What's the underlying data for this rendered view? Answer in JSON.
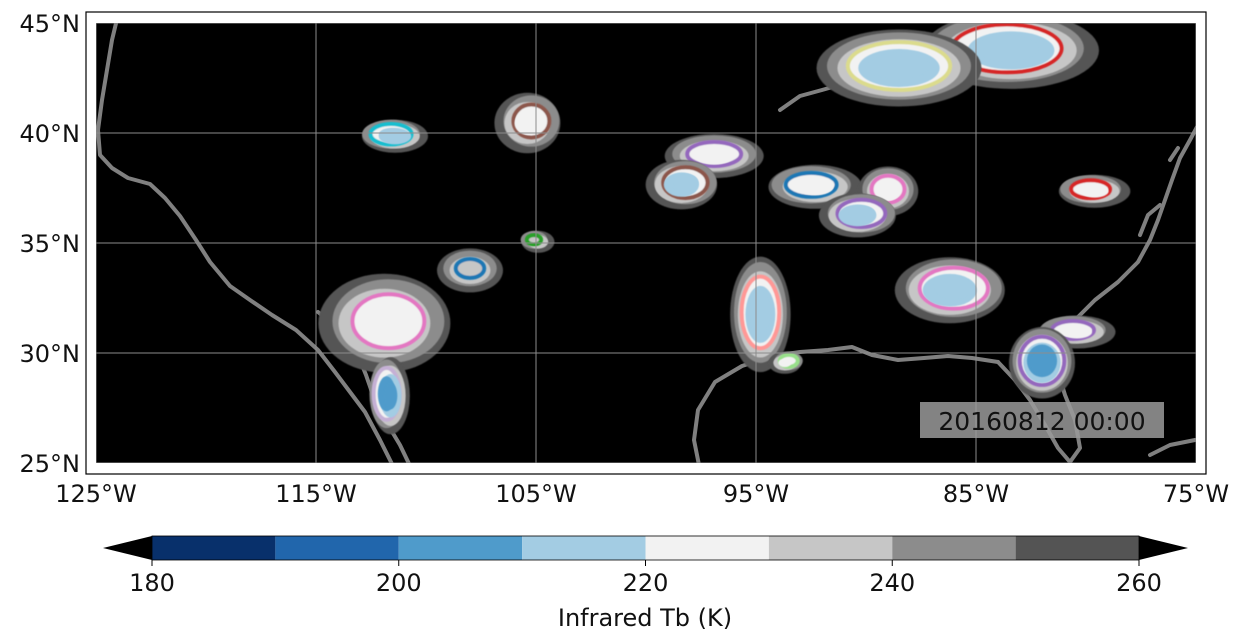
{
  "map": {
    "extent": {
      "lon": [
        -125,
        -75
      ],
      "lat": [
        25,
        45
      ]
    },
    "background_color": "#000000",
    "lat_ticks": [
      {
        "value": 45,
        "label": "45°N"
      },
      {
        "value": 40,
        "label": "40°N"
      },
      {
        "value": 35,
        "label": "35°N"
      },
      {
        "value": 30,
        "label": "30°N"
      },
      {
        "value": 25,
        "label": "25°N"
      }
    ],
    "lon_ticks": [
      {
        "value": -125,
        "label": "125°W"
      },
      {
        "value": -115,
        "label": "115°W"
      },
      {
        "value": -105,
        "label": "105°W"
      },
      {
        "value": -95,
        "label": "95°W"
      },
      {
        "value": -85,
        "label": "85°W"
      },
      {
        "value": -75,
        "label": "75°W"
      }
    ],
    "gridlines": true,
    "coastline_color": "#808080",
    "timestamp": "20160812 00:00"
  },
  "colorbar": {
    "label": "Infrared Tb (K)",
    "range": [
      180,
      260
    ],
    "bins": [
      {
        "from": 180,
        "to": 190,
        "color": "#08306b"
      },
      {
        "from": 190,
        "to": 200,
        "color": "#2166ac"
      },
      {
        "from": 200,
        "to": 210,
        "color": "#4f9bcb"
      },
      {
        "from": 210,
        "to": 220,
        "color": "#a3cce3"
      },
      {
        "from": 220,
        "to": 230,
        "color": "#f2f2f2"
      },
      {
        "from": 230,
        "to": 240,
        "color": "#c6c6c6"
      },
      {
        "from": 240,
        "to": 250,
        "color": "#8c8c8c"
      },
      {
        "from": 250,
        "to": 260,
        "color": "#545454"
      }
    ],
    "extend_color": "#000000",
    "ticks": [
      {
        "value": 180,
        "label": "180"
      },
      {
        "value": 200,
        "label": "200"
      },
      {
        "value": 220,
        "label": "220"
      },
      {
        "value": 240,
        "label": "240"
      },
      {
        "value": 260,
        "label": "260"
      }
    ]
  },
  "features": [
    {
      "id": "feature-northeast-large",
      "lon": -83.5,
      "lat": 43.8,
      "rx_deg": 3.2,
      "ry_deg": 1.4,
      "core_tb": 212,
      "outline": "#d62728"
    },
    {
      "id": "feature-great-lakes-west",
      "lon": -88.5,
      "lat": 43.0,
      "rx_deg": 3.0,
      "ry_deg": 1.4,
      "core_tb": 212,
      "outline": "#dbdb8d"
    },
    {
      "id": "feature-colorado-north",
      "lon": -105.3,
      "lat": 40.5,
      "rx_deg": 1.2,
      "ry_deg": 1.1,
      "core_tb": 225,
      "outline": "#8c564b"
    },
    {
      "id": "feature-utah-north",
      "lon": -111.5,
      "lat": 39.9,
      "rx_deg": 1.2,
      "ry_deg": 0.6,
      "core_tb": 215,
      "outline": "#17becf"
    },
    {
      "id": "feature-kansas",
      "lon": -96.9,
      "lat": 39.0,
      "rx_deg": 1.8,
      "ry_deg": 0.8,
      "core_tb": 222,
      "outline": "#9467bd"
    },
    {
      "id": "feature-oklahoma-north",
      "lon": -98.3,
      "lat": 37.7,
      "rx_deg": 1.3,
      "ry_deg": 0.9,
      "core_tb": 214,
      "outline": "#8c564b"
    },
    {
      "id": "feature-missouri",
      "lon": -92.4,
      "lat": 37.6,
      "rx_deg": 1.7,
      "ry_deg": 0.8,
      "core_tb": 222,
      "outline": "#1f77b4"
    },
    {
      "id": "feature-illinois",
      "lon": -89.0,
      "lat": 37.4,
      "rx_deg": 1.1,
      "ry_deg": 0.9,
      "core_tb": 225,
      "outline": "#e377c2"
    },
    {
      "id": "feature-kentucky",
      "lon": -90.3,
      "lat": 36.3,
      "rx_deg": 1.4,
      "ry_deg": 0.8,
      "core_tb": 214,
      "outline": "#9467bd"
    },
    {
      "id": "feature-virginia",
      "lon": -79.7,
      "lat": 37.4,
      "rx_deg": 1.3,
      "ry_deg": 0.6,
      "core_tb": 225,
      "outline": "#d62728"
    },
    {
      "id": "feature-new-mexico-north",
      "lon": -108.0,
      "lat": 33.8,
      "rx_deg": 1.2,
      "ry_deg": 0.8,
      "core_tb": 230,
      "outline": "#1f77b4"
    },
    {
      "id": "feature-arizona",
      "lon": -111.8,
      "lat": 31.4,
      "rx_deg": 2.4,
      "ry_deg": 1.8,
      "core_tb": 222,
      "outline": "#e377c2"
    },
    {
      "id": "feature-sonora",
      "lon": -111.7,
      "lat": 28.1,
      "rx_deg": 0.7,
      "ry_deg": 1.4,
      "core_tb": 205,
      "outline": "#c5b0d5"
    },
    {
      "id": "feature-east-texas",
      "lon": -94.8,
      "lat": 31.8,
      "rx_deg": 1.1,
      "ry_deg": 2.1,
      "core_tb": 212,
      "outline": "#ff9896"
    },
    {
      "id": "feature-alabama",
      "lon": -86.1,
      "lat": 32.9,
      "rx_deg": 2.0,
      "ry_deg": 1.2,
      "core_tb": 215,
      "outline": "#e377c2"
    },
    {
      "id": "feature-georgia-east",
      "lon": -80.5,
      "lat": 31.0,
      "rx_deg": 1.4,
      "ry_deg": 0.6,
      "core_tb": 224,
      "outline": "#9467bd"
    },
    {
      "id": "feature-florida",
      "lon": -82.0,
      "lat": 29.6,
      "rx_deg": 1.2,
      "ry_deg": 1.3,
      "core_tb": 204,
      "outline": "#9467bd"
    },
    {
      "id": "feature-texas-coast",
      "lon": -93.6,
      "lat": 29.6,
      "rx_deg": 0.6,
      "ry_deg": 0.4,
      "core_tb": 225,
      "outline": "#98df8a"
    },
    {
      "id": "feature-new-mexico-east",
      "lon": -105.0,
      "lat": 35.1,
      "rx_deg": 0.6,
      "ry_deg": 0.4,
      "core_tb": 232,
      "outline": "#2ca02c"
    }
  ]
}
